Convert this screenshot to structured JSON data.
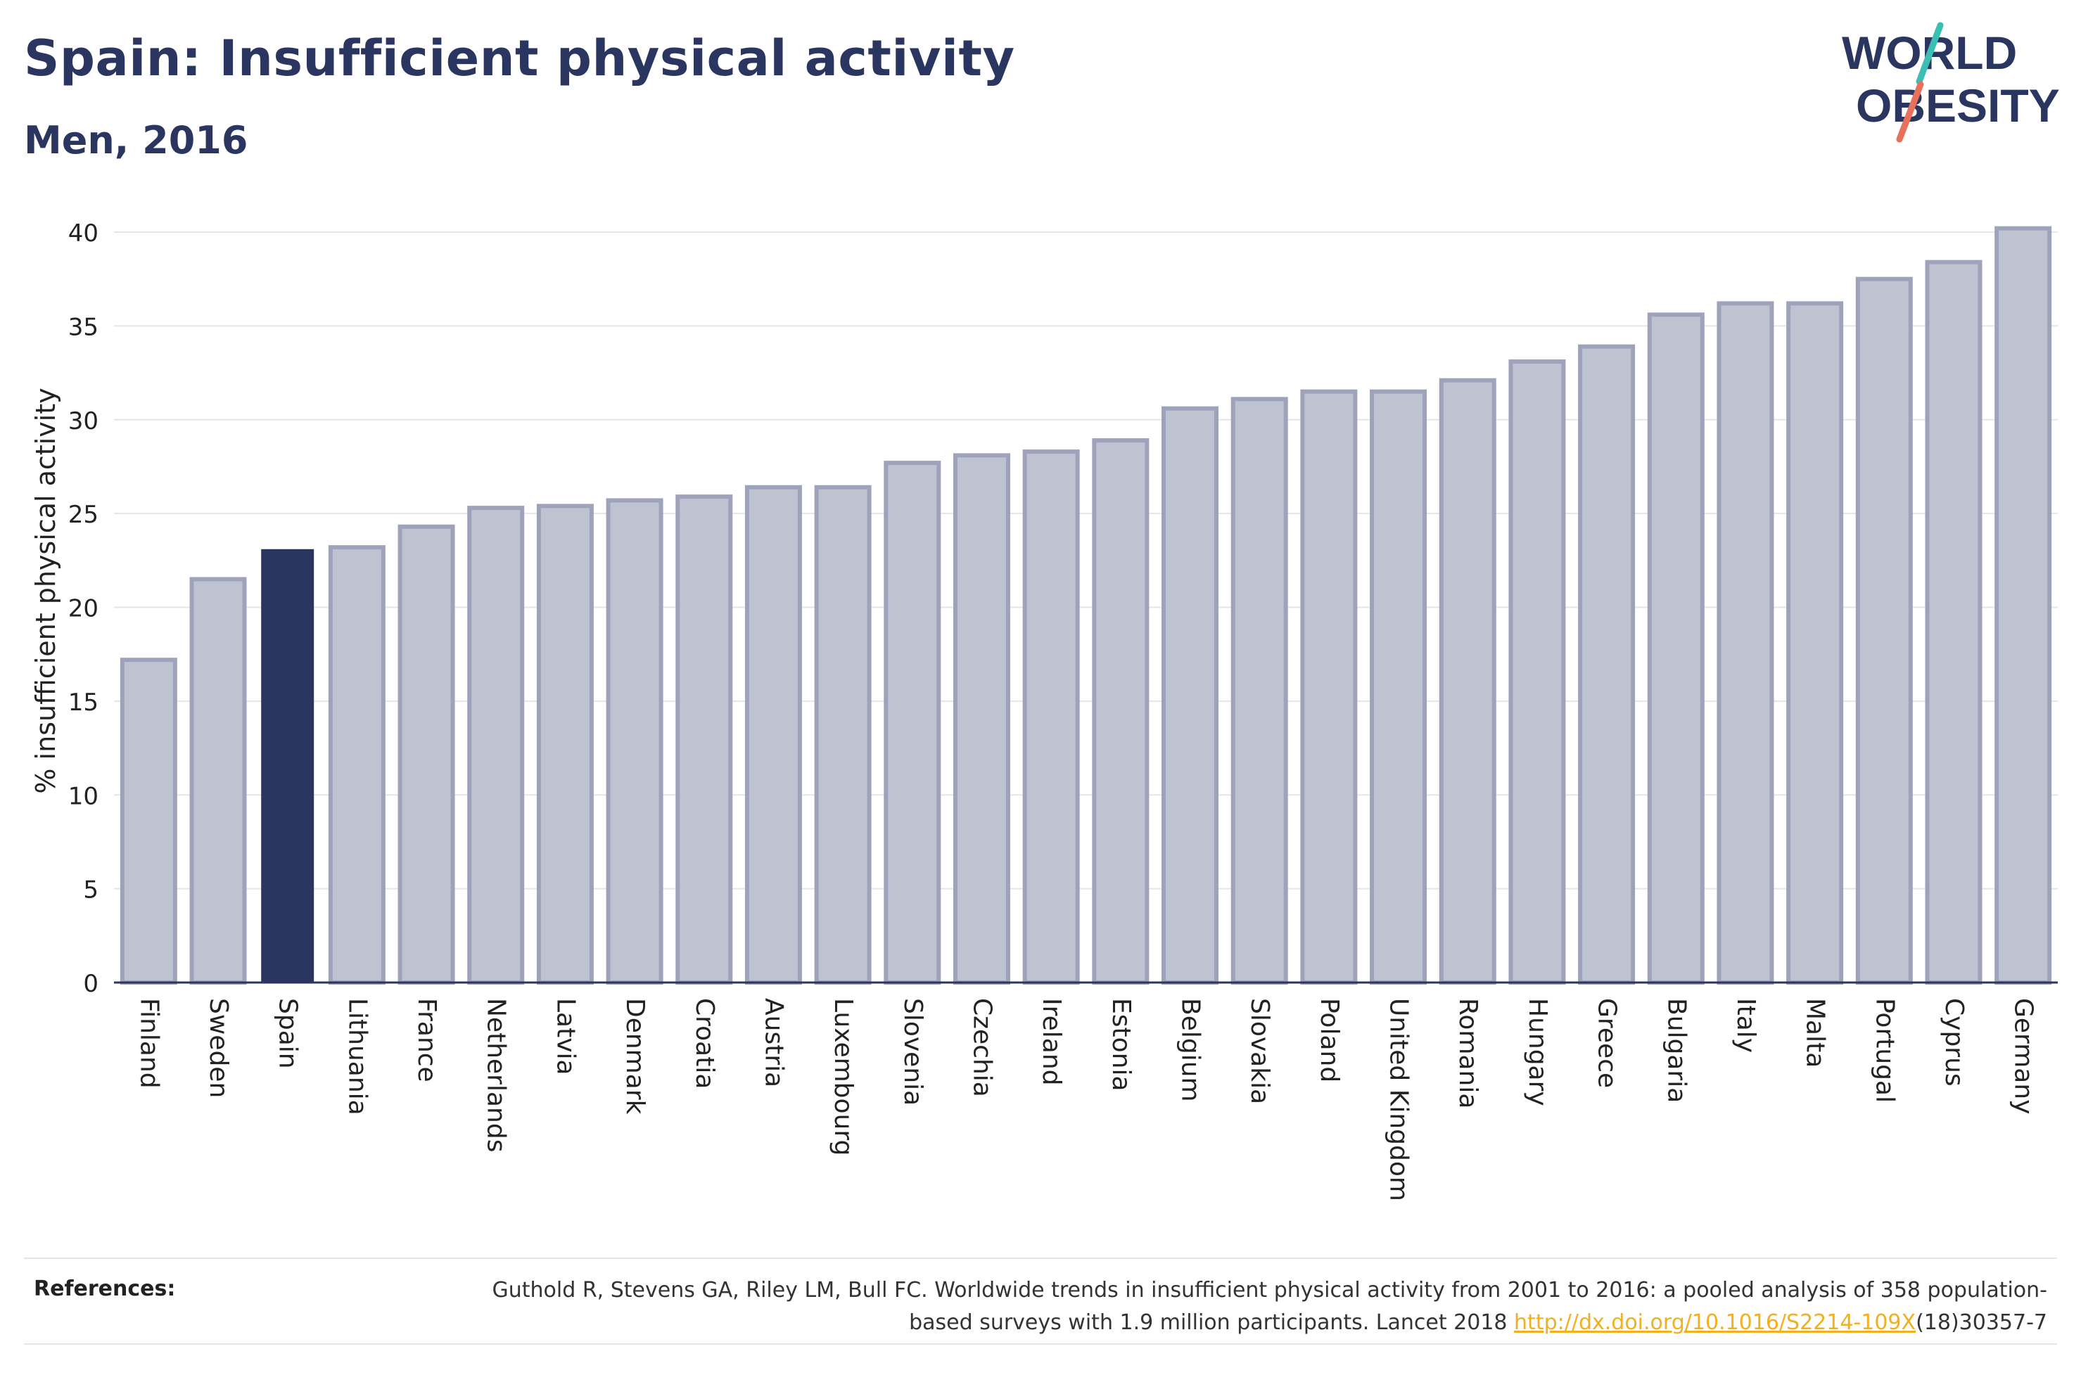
{
  "title": "Spain: Insufficient physical activity",
  "subtitle": "Men, 2016",
  "logo": {
    "line1": "WORLD",
    "line2": "OBESITY",
    "navy": "#2b3660",
    "teal": "#3bbfb3",
    "coral": "#e8715c"
  },
  "colors": {
    "bar": "#bfc2d0",
    "bar_stroke": "#9ea3bb",
    "highlight": "#2b3660",
    "text": "#2b3660"
  },
  "chart_data": {
    "type": "bar",
    "ylabel": "% insufficient physical activity",
    "xlabel": "",
    "ylim": [
      0,
      40
    ],
    "yticks": [
      0,
      5,
      10,
      15,
      20,
      25,
      30,
      35,
      40
    ],
    "grid": true,
    "highlight": "Spain",
    "categories": [
      "Finland",
      "Sweden",
      "Spain",
      "Lithuania",
      "France",
      "Netherlands",
      "Latvia",
      "Denmark",
      "Croatia",
      "Austria",
      "Luxembourg",
      "Slovenia",
      "Czechia",
      "Ireland",
      "Estonia",
      "Belgium",
      "Slovakia",
      "Poland",
      "United Kingdom",
      "Romania",
      "Hungary",
      "Greece",
      "Bulgaria",
      "Italy",
      "Malta",
      "Portugal",
      "Cyprus",
      "Germany"
    ],
    "values": [
      17.2,
      21.5,
      23.1,
      23.2,
      24.3,
      25.3,
      25.4,
      25.7,
      25.9,
      26.4,
      26.4,
      27.7,
      28.1,
      28.3,
      28.9,
      30.6,
      31.1,
      31.5,
      31.5,
      32.1,
      33.1,
      33.9,
      35.6,
      36.2,
      36.2,
      37.5,
      38.4,
      40.2
    ]
  },
  "references": {
    "label": "References:",
    "text_before": "Guthold R, Stevens GA, Riley LM, Bull FC. Worldwide trends in insufficient physical activity from 2001 to 2016: a pooled analysis of 358 population-based surveys with 1.9 million participants. Lancet 2018 ",
    "link": "http://dx.doi.org/10.1016/S2214-109X",
    "text_after": "(18)30357-7"
  }
}
